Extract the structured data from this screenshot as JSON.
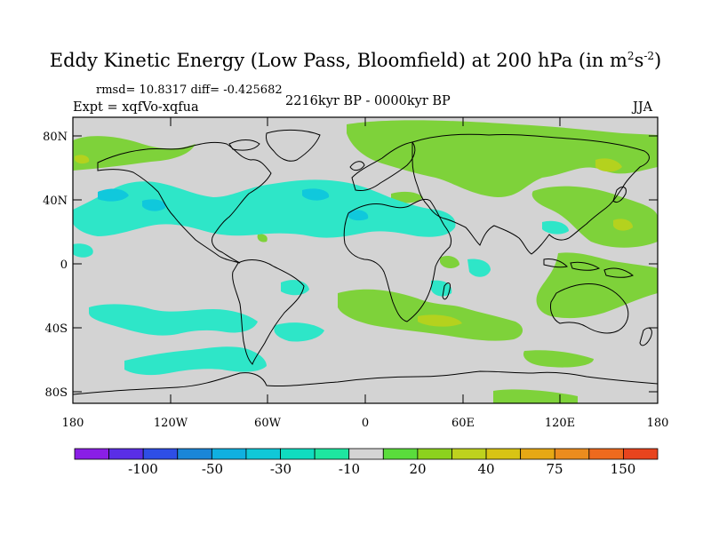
{
  "title": {
    "prefix": "Eddy Kinetic Energy (Low Pass, Bloomfield) at 200 hPa (in m",
    "sup1": "2",
    "mid": "s",
    "sup2": "-2",
    "suffix": ")"
  },
  "stats": "rmsd= 10.8317  diff= -0.425682",
  "expt": "Expt = xqfVo-xqfua",
  "period": "2216kyr BP - 0000kyr BP",
  "season": "JJA",
  "lat_labels": [
    "80N",
    "40N",
    "0",
    "40S",
    "80S"
  ],
  "lon_labels": [
    "180",
    "120W",
    "60W",
    "0",
    "60E",
    "120E",
    "180"
  ],
  "colorbar": {
    "colors": [
      "#8a1ee6",
      "#5a2ee6",
      "#2e4ee6",
      "#1a86d8",
      "#10b0e0",
      "#10c8d8",
      "#10dcc0",
      "#1ee6a0",
      "#d4d4d4",
      "#5adc3c",
      "#8cd21e",
      "#bed21e",
      "#d8c414",
      "#e6a814",
      "#ec8c1e",
      "#ee6a1e",
      "#e8441e"
    ],
    "labels": [
      "-100",
      "-50",
      "-30",
      "-10",
      "20",
      "40",
      "75",
      "150"
    ]
  },
  "colors": {
    "neutral": "#d3d3d3",
    "pos1": "#7ed23a",
    "pos2": "#b4d21e",
    "neg1": "#2ee6c8",
    "neg2": "#10c8dc"
  }
}
